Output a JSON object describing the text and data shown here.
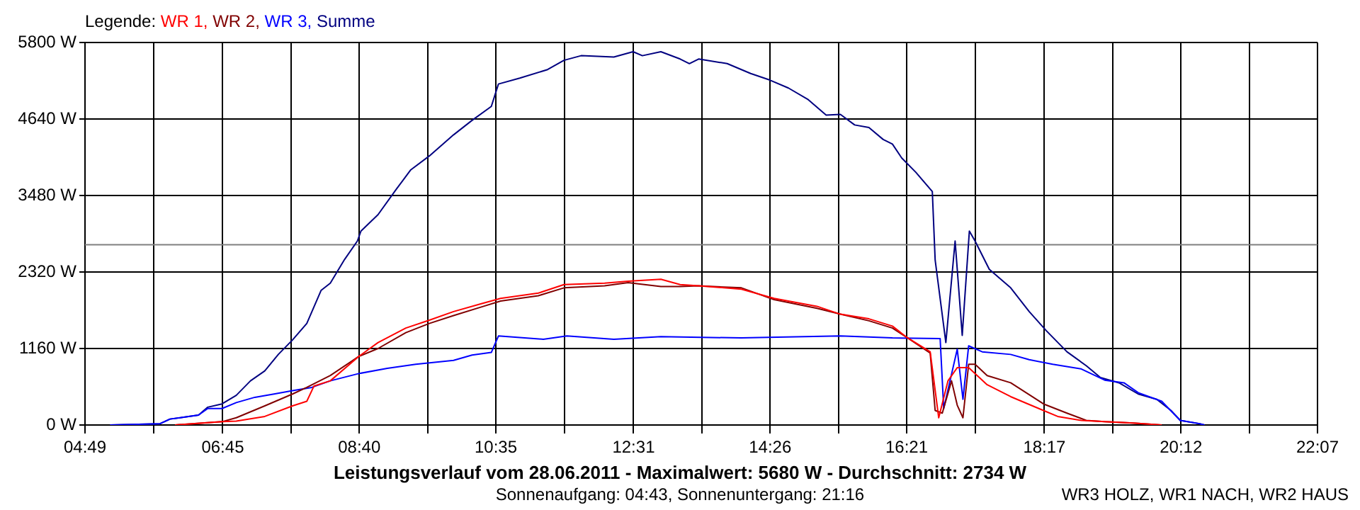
{
  "chart_data": {
    "type": "line",
    "title": "Leistungsverlauf vom 28.06.2011 - Maximalwert: 5680 W - Durchschnitt: 2734 W",
    "subtitle": "Sonnenaufgang: 04:43, Sonnenuntergang: 21:16",
    "legend_title": "Legende:",
    "annotations": [
      "WR3 HOLZ, WR1 NACH, WR2 HAUS"
    ],
    "legend": "top left",
    "grid": true,
    "marker": "none",
    "line_style": "solid",
    "xlim": [
      4.8167,
      22.1167
    ],
    "xticks": [
      {
        "value": 4.8167,
        "label": "04:49"
      },
      {
        "value": 5.7833,
        "label": null
      },
      {
        "value": 6.75,
        "label": "06:45"
      },
      {
        "value": 7.7083,
        "label": null
      },
      {
        "value": 8.6667,
        "label": "08:40"
      },
      {
        "value": 9.625,
        "label": null
      },
      {
        "value": 10.5833,
        "label": "10:35"
      },
      {
        "value": 11.55,
        "label": null
      },
      {
        "value": 12.5167,
        "label": "12:31"
      },
      {
        "value": 13.475,
        "label": null
      },
      {
        "value": 14.4333,
        "label": "14:26"
      },
      {
        "value": 15.3917,
        "label": null
      },
      {
        "value": 16.35,
        "label": "16:21"
      },
      {
        "value": 17.3167,
        "label": null
      },
      {
        "value": 18.2833,
        "label": "18:17"
      },
      {
        "value": 19.2417,
        "label": null
      },
      {
        "value": 20.2,
        "label": "20:12"
      },
      {
        "value": 21.1583,
        "label": null
      },
      {
        "value": 22.1167,
        "label": "22:07"
      }
    ],
    "ylim": [
      0,
      5800
    ],
    "yticks": [
      {
        "value": 0,
        "label": "0 W"
      },
      {
        "value": 1160,
        "label": "1160 W"
      },
      {
        "value": 2320,
        "label": "2320 W"
      },
      {
        "value": 3480,
        "label": "3480 W"
      },
      {
        "value": 4640,
        "label": "4640 W"
      },
      {
        "value": 5800,
        "label": "5800 W"
      }
    ],
    "ref_lines": [
      {
        "axis": "y",
        "value": 2734,
        "color": "#808080"
      }
    ],
    "series": [
      {
        "name": "WR 1,",
        "color": "#ff0000",
        "x": [
          6.08,
          6.74,
          6.94,
          7.34,
          7.73,
          7.93,
          8.03,
          8.26,
          8.66,
          8.93,
          9.32,
          9.65,
          9.99,
          10.38,
          10.65,
          11.18,
          11.54,
          12.11,
          12.44,
          12.9,
          13.17,
          13.43,
          14.03,
          14.49,
          15.09,
          15.42,
          15.82,
          16.15,
          16.35,
          16.68,
          16.8,
          16.93,
          17.06,
          17.22,
          17.48,
          17.81,
          18.27,
          18.47,
          18.8,
          19.13,
          19.53,
          19.93
        ],
        "values": [
          0,
          50,
          60,
          130,
          290,
          360,
          590,
          670,
          1040,
          1250,
          1470,
          1590,
          1720,
          1840,
          1920,
          2000,
          2130,
          2150,
          2180,
          2210,
          2130,
          2110,
          2060,
          1920,
          1800,
          1680,
          1610,
          1500,
          1330,
          1110,
          110,
          670,
          870,
          870,
          610,
          430,
          220,
          130,
          70,
          50,
          30,
          0
        ]
      },
      {
        "name": "WR 2,",
        "color": "#800000",
        "x": [
          6.08,
          6.74,
          6.94,
          7.34,
          7.73,
          7.93,
          8.26,
          8.66,
          8.93,
          9.32,
          9.65,
          9.99,
          10.38,
          10.65,
          11.18,
          11.54,
          12.11,
          12.44,
          12.9,
          13.17,
          13.43,
          14.03,
          14.49,
          15.09,
          15.42,
          15.82,
          16.15,
          16.35,
          16.68,
          16.75,
          16.85,
          16.98,
          17.06,
          17.14,
          17.22,
          17.31,
          17.48,
          17.81,
          18.27,
          18.6,
          18.87,
          19.13,
          19.53,
          19.93
        ],
        "values": [
          0,
          50,
          110,
          290,
          470,
          570,
          750,
          1040,
          1160,
          1400,
          1540,
          1660,
          1790,
          1880,
          1960,
          2080,
          2110,
          2160,
          2100,
          2100,
          2110,
          2080,
          1900,
          1770,
          1680,
          1580,
          1470,
          1330,
          1090,
          220,
          180,
          670,
          300,
          110,
          920,
          920,
          750,
          640,
          320,
          180,
          70,
          50,
          30,
          0
        ]
      },
      {
        "name": "WR 3,",
        "color": "#0000ff",
        "x": [
          5.17,
          5.87,
          6.01,
          6.41,
          6.54,
          6.74,
          6.94,
          7.2,
          7.47,
          7.73,
          8.0,
          8.26,
          8.66,
          9.06,
          9.46,
          9.99,
          10.25,
          10.52,
          10.62,
          11.25,
          11.58,
          12.24,
          12.9,
          14.03,
          15.42,
          16.15,
          16.82,
          16.87,
          17.06,
          17.14,
          17.22,
          17.41,
          17.81,
          18.07,
          18.4,
          18.8,
          19.13,
          19.4,
          19.6,
          19.93,
          20.19,
          20.46,
          20.53
        ],
        "values": [
          0,
          20,
          90,
          150,
          250,
          250,
          340,
          420,
          470,
          520,
          570,
          670,
          780,
          860,
          920,
          980,
          1060,
          1100,
          1350,
          1300,
          1350,
          1300,
          1340,
          1320,
          1350,
          1320,
          1310,
          250,
          1150,
          390,
          1200,
          1110,
          1070,
          990,
          920,
          850,
          680,
          640,
          490,
          360,
          70,
          20,
          0
        ]
      },
      {
        "name": "Summe",
        "color": "#000080",
        "x": [
          5.17,
          5.87,
          6.01,
          6.41,
          6.54,
          6.74,
          6.94,
          7.14,
          7.34,
          7.53,
          7.73,
          7.93,
          8.13,
          8.26,
          8.46,
          8.64,
          8.69,
          8.93,
          9.19,
          9.39,
          9.65,
          9.99,
          10.25,
          10.52,
          10.62,
          10.92,
          11.31,
          11.54,
          11.78,
          12.24,
          12.51,
          12.64,
          12.9,
          13.17,
          13.3,
          13.43,
          13.83,
          14.16,
          14.43,
          14.69,
          14.96,
          15.22,
          15.42,
          15.62,
          15.82,
          16.02,
          16.15,
          16.28,
          16.48,
          16.71,
          16.75,
          16.9,
          17.03,
          17.13,
          17.23,
          17.31,
          17.51,
          17.81,
          18.07,
          18.31,
          18.6,
          18.87,
          19.07,
          19.33,
          19.6,
          19.86,
          20.06,
          20.19,
          20.46,
          20.53
        ],
        "values": [
          0,
          20,
          90,
          150,
          270,
          320,
          450,
          670,
          820,
          1070,
          1290,
          1540,
          2040,
          2150,
          2510,
          2790,
          2940,
          3190,
          3580,
          3870,
          4080,
          4400,
          4620,
          4830,
          5170,
          5260,
          5390,
          5530,
          5600,
          5580,
          5660,
          5600,
          5660,
          5550,
          5480,
          5550,
          5480,
          5330,
          5230,
          5110,
          4940,
          4700,
          4710,
          4550,
          4510,
          4330,
          4260,
          4050,
          3830,
          3540,
          2500,
          1250,
          2790,
          1360,
          2940,
          2790,
          2360,
          2080,
          1720,
          1430,
          1110,
          900,
          720,
          640,
          470,
          390,
          220,
          70,
          20,
          0
        ]
      }
    ]
  }
}
